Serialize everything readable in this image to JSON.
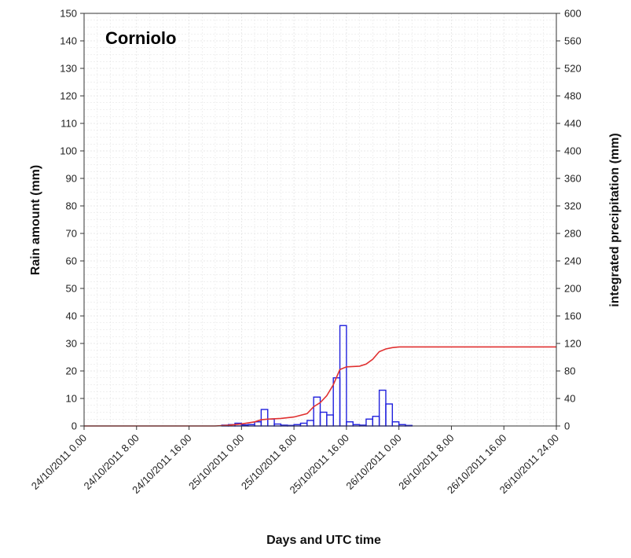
{
  "chart_data": {
    "type": "bar",
    "title": "Corniolo",
    "xlabel": "Days and UTC time",
    "ylabel": "Rain amount (mm)",
    "y2label": "integrated precipitation (mm)",
    "x_ticks": [
      "24/10/2011 0.00",
      "24/10/2011 8.00",
      "24/10/2011 16.00",
      "25/10/2011 0.00",
      "25/10/2011 8.00",
      "25/10/2011 16.00",
      "26/10/2011 0.00",
      "26/10/2011 8.00",
      "26/10/2011 16.00",
      "26/10/2011 24.00"
    ],
    "xlim_hours": [
      0,
      72
    ],
    "ylim": [
      0,
      150
    ],
    "y_ticks": [
      0,
      10,
      20,
      30,
      40,
      50,
      60,
      70,
      80,
      90,
      100,
      110,
      120,
      130,
      140,
      150
    ],
    "y2lim": [
      0,
      600
    ],
    "y2_ticks": [
      0,
      40,
      80,
      120,
      160,
      200,
      240,
      280,
      320,
      360,
      400,
      440,
      480,
      520,
      560,
      600
    ],
    "grid": true,
    "colors": {
      "bars": "#2020dd",
      "cumulative": "#e03030",
      "grid": "#e2e2e2",
      "axis": "#333333"
    },
    "series": [
      {
        "type": "bar",
        "axis": "left",
        "hours": [
          21,
          22,
          23,
          24,
          25,
          26,
          27,
          28,
          29,
          30,
          31,
          32,
          33,
          34,
          35,
          36,
          37,
          38,
          39,
          40,
          41,
          42,
          43,
          44,
          45,
          46,
          47,
          48,
          49
        ],
        "values": [
          0.3,
          0.5,
          1.0,
          0.4,
          0.5,
          1.5,
          6.0,
          2.5,
          0.7,
          0.3,
          0.2,
          0.5,
          1.0,
          2.0,
          10.5,
          5.0,
          4.0,
          17.5,
          36.5,
          1.5,
          0.5,
          0.3,
          2.5,
          3.5,
          13.0,
          8.0,
          1.5,
          0.5,
          0.2
        ]
      },
      {
        "type": "line",
        "axis": "right",
        "hours": [
          0,
          20,
          22,
          24,
          26,
          27,
          28,
          30,
          32,
          34,
          35,
          36,
          37,
          38,
          39,
          40,
          42,
          43,
          44,
          45,
          46,
          47,
          48,
          50,
          55,
          60,
          65,
          72
        ],
        "values": [
          0,
          0,
          1,
          3,
          6,
          9,
          10,
          11,
          13,
          18,
          28,
          34,
          44,
          60,
          82,
          86,
          87,
          90,
          97,
          108,
          112,
          114,
          115,
          115,
          115,
          115,
          115,
          115
        ]
      }
    ]
  }
}
